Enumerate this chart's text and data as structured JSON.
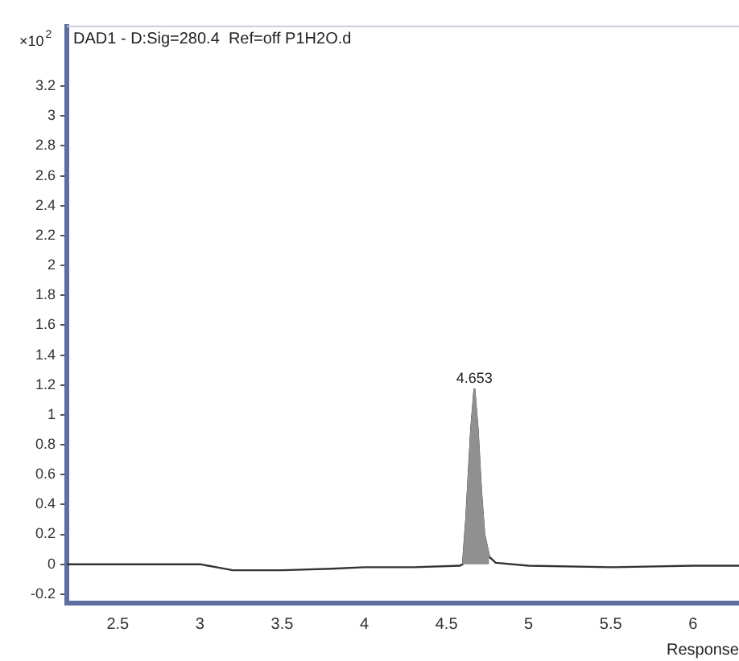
{
  "chart_data": {
    "type": "line",
    "title": "DAD1 - D:Sig=280.4  Ref=off P1H2O.d",
    "xlabel": "Response",
    "annotations": [
      "×10$^{2}$",
      {
        "text": "4.653",
        "x": 4.67,
        "y": 1.17
      }
    ],
    "xlim": [
      2.19,
      6.28
    ],
    "xticks": [
      2.5,
      3,
      3.5,
      4,
      4.5,
      5,
      5.5,
      6
    ],
    "ylim": [
      -0.26,
      3.6
    ],
    "yticks": [
      -0.2,
      0,
      0.2,
      0.4,
      0.6,
      0.8,
      1,
      1.2,
      1.4,
      1.6,
      1.8,
      2,
      2.2,
      2.4,
      2.6,
      2.8,
      3,
      3.2
    ],
    "grid": false,
    "legend": false,
    "marker": "none",
    "line_style": "solid",
    "series": [
      {
        "type": "line",
        "color": "#333333",
        "x": [
          2.19,
          2.6,
          3.0,
          3.05,
          3.1,
          3.2,
          3.5,
          3.8,
          4.0,
          4.3,
          4.58,
          4.6,
          4.62,
          4.65,
          4.67,
          4.69,
          4.71,
          4.73,
          4.76,
          4.8,
          5.0,
          5.5,
          6.0,
          6.28
        ],
        "values": [
          0,
          0,
          0,
          -0.01,
          -0.02,
          -0.04,
          -0.04,
          -0.03,
          -0.02,
          -0.02,
          -0.01,
          0,
          0.3,
          0.9,
          1.17,
          0.9,
          0.5,
          0.2,
          0.05,
          0.01,
          -0.01,
          -0.02,
          -0.01,
          -0.01
        ]
      },
      {
        "type": "area",
        "color": "#909090",
        "x": [
          4.6,
          4.62,
          4.65,
          4.67,
          4.69,
          4.71,
          4.73,
          4.76
        ],
        "values": [
          0,
          0.3,
          0.9,
          1.17,
          0.9,
          0.5,
          0.2,
          0.05
        ]
      }
    ]
  }
}
